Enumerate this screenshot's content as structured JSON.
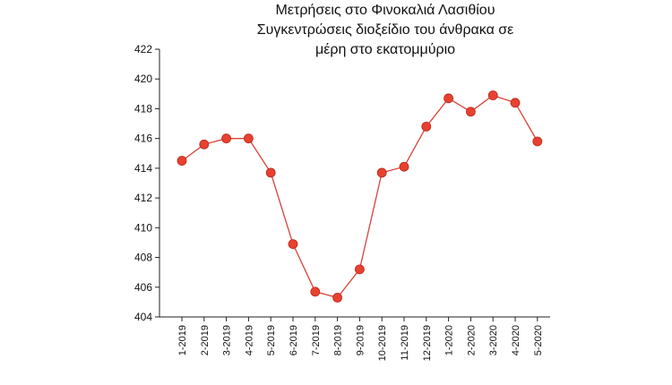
{
  "chart_data": {
    "type": "line",
    "title_lines": [
      "Μετρήσεις στο Φινοκαλιά Λασιθίου",
      "Συγκεντρώσεις διοξείδιο του άνθρακα  σε",
      "μέρη στο εκατομμύριο"
    ],
    "categories": [
      "1-2019",
      "2-2019",
      "3-2019",
      "4-2019",
      "5-2019",
      "6-2019",
      "7-2019",
      "8-2019",
      "9-2019",
      "10-2019",
      "11-2019",
      "12-2019",
      "1-2020",
      "2-2020",
      "3-2020",
      "4-2020",
      "5-2020"
    ],
    "values": [
      414.5,
      415.6,
      416.0,
      416.0,
      413.7,
      408.9,
      405.7,
      405.3,
      407.2,
      413.7,
      414.1,
      416.8,
      418.7,
      417.8,
      418.9,
      418.4,
      415.8
    ],
    "ylim": [
      404,
      422
    ],
    "yticks": [
      404,
      406,
      408,
      410,
      412,
      414,
      416,
      418,
      420,
      422
    ],
    "grid": false,
    "line_color": "#d9433a",
    "marker_color": "#e8412f"
  }
}
